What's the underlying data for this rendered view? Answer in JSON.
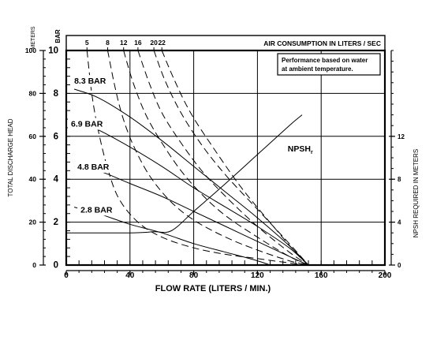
{
  "chart_data": {
    "type": "line",
    "xlabel": "FLOW RATE (LITERS / MIN.)",
    "xlim": [
      0,
      200
    ],
    "x_ticks": [
      "0",
      "40",
      "80",
      "120",
      "160",
      "200"
    ],
    "y_left_bar": {
      "unit": "BAR",
      "lim": [
        0,
        10
      ],
      "ticks": [
        "0",
        "2",
        "4",
        "6",
        "8",
        "10"
      ]
    },
    "y_left_meters": {
      "unit": "METERS",
      "title": "TOTAL DISCHARGE HEAD",
      "lim": [
        0,
        100
      ],
      "ticks": [
        "0",
        "20",
        "40",
        "60",
        "80",
        "100"
      ]
    },
    "y_right": {
      "title": "NPSH REQUIRED IN METERS",
      "lim": [
        0,
        20
      ],
      "ticks": [
        "0",
        "4",
        "8",
        "12"
      ]
    },
    "top_axis": {
      "title": "AIR CONSUMPTION IN LITERS / SEC",
      "ticks": [
        "5",
        "8",
        "12",
        "16",
        "20",
        "22"
      ]
    },
    "note": [
      "Performance based on water",
      "at ambient temperature."
    ],
    "grid": true,
    "pressure_curves": [
      {
        "name": "8.3 BAR",
        "points": [
          [
            5,
            8.2
          ],
          [
            20,
            7.8
          ],
          [
            40,
            6.9
          ],
          [
            60,
            5.8
          ],
          [
            80,
            4.6
          ],
          [
            100,
            3.4
          ],
          [
            120,
            2.2
          ],
          [
            140,
            0.9
          ],
          [
            152,
            0
          ]
        ]
      },
      {
        "name": "6.9 BAR",
        "points": [
          [
            5,
            6.7
          ],
          [
            20,
            6.3
          ],
          [
            40,
            5.5
          ],
          [
            60,
            4.6
          ],
          [
            80,
            3.6
          ],
          [
            100,
            2.7
          ],
          [
            120,
            1.8
          ],
          [
            140,
            0.8
          ],
          [
            152,
            0
          ]
        ]
      },
      {
        "name": "4.8 BAR",
        "points": [
          [
            5,
            4.6
          ],
          [
            20,
            4.4
          ],
          [
            40,
            3.8
          ],
          [
            60,
            3.2
          ],
          [
            80,
            2.5
          ],
          [
            100,
            1.8
          ],
          [
            120,
            1.1
          ],
          [
            140,
            0.4
          ],
          [
            152,
            0
          ]
        ]
      },
      {
        "name": "2.8 BAR",
        "points": [
          [
            5,
            2.7
          ],
          [
            20,
            2.4
          ],
          [
            40,
            1.9
          ],
          [
            60,
            1.5
          ],
          [
            80,
            1.0
          ],
          [
            100,
            0.6
          ],
          [
            120,
            0.2
          ],
          [
            128,
            0
          ]
        ]
      }
    ],
    "air_consumption_curves": [
      {
        "name": "5",
        "points": [
          [
            13,
            10
          ],
          [
            16,
            8
          ],
          [
            20,
            6.3
          ],
          [
            26,
            4.5
          ],
          [
            33,
            3.1
          ],
          [
            45,
            2.0
          ],
          [
            60,
            1.3
          ],
          [
            80,
            0.8
          ],
          [
            100,
            0.5
          ],
          [
            120,
            0.3
          ],
          [
            140,
            0.1
          ],
          [
            152,
            0
          ]
        ]
      },
      {
        "name": "8",
        "points": [
          [
            26,
            10
          ],
          [
            30,
            8.5
          ],
          [
            35,
            7
          ],
          [
            42,
            5.6
          ],
          [
            52,
            4.2
          ],
          [
            65,
            3.0
          ],
          [
            80,
            2.1
          ],
          [
            100,
            1.3
          ],
          [
            120,
            0.7
          ],
          [
            140,
            0.2
          ],
          [
            152,
            0
          ]
        ]
      },
      {
        "name": "12",
        "points": [
          [
            36,
            10
          ],
          [
            42,
            8.5
          ],
          [
            50,
            7
          ],
          [
            60,
            5.7
          ],
          [
            72,
            4.4
          ],
          [
            85,
            3.3
          ],
          [
            100,
            2.3
          ],
          [
            120,
            1.3
          ],
          [
            140,
            0.4
          ],
          [
            152,
            0
          ]
        ]
      },
      {
        "name": "16",
        "points": [
          [
            45,
            10
          ],
          [
            52,
            8.5
          ],
          [
            60,
            7.1
          ],
          [
            72,
            5.7
          ],
          [
            85,
            4.4
          ],
          [
            100,
            3.2
          ],
          [
            120,
            1.8
          ],
          [
            140,
            0.6
          ],
          [
            152,
            0
          ]
        ]
      },
      {
        "name": "20",
        "points": [
          [
            55,
            10
          ],
          [
            62,
            8.6
          ],
          [
            72,
            7.1
          ],
          [
            85,
            5.6
          ],
          [
            100,
            4.2
          ],
          [
            120,
            2.6
          ],
          [
            140,
            1.0
          ],
          [
            152,
            0
          ]
        ]
      },
      {
        "name": "22",
        "points": [
          [
            60,
            10
          ],
          [
            68,
            8.6
          ],
          [
            78,
            7.1
          ],
          [
            92,
            5.5
          ],
          [
            110,
            3.6
          ],
          [
            130,
            1.8
          ],
          [
            145,
            0.5
          ],
          [
            152,
            0
          ]
        ]
      }
    ],
    "npsh_curve": {
      "name": "NPSHr",
      "label_main": "NPSH",
      "label_sub": "r",
      "points": [
        [
          0,
          3.0
        ],
        [
          40,
          3.0
        ],
        [
          55,
          3.1
        ],
        [
          66,
          3.2
        ],
        [
          80,
          5.0
        ],
        [
          100,
          7.6
        ],
        [
          120,
          10.3
        ],
        [
          140,
          13.0
        ],
        [
          148,
          14.0
        ]
      ]
    }
  }
}
